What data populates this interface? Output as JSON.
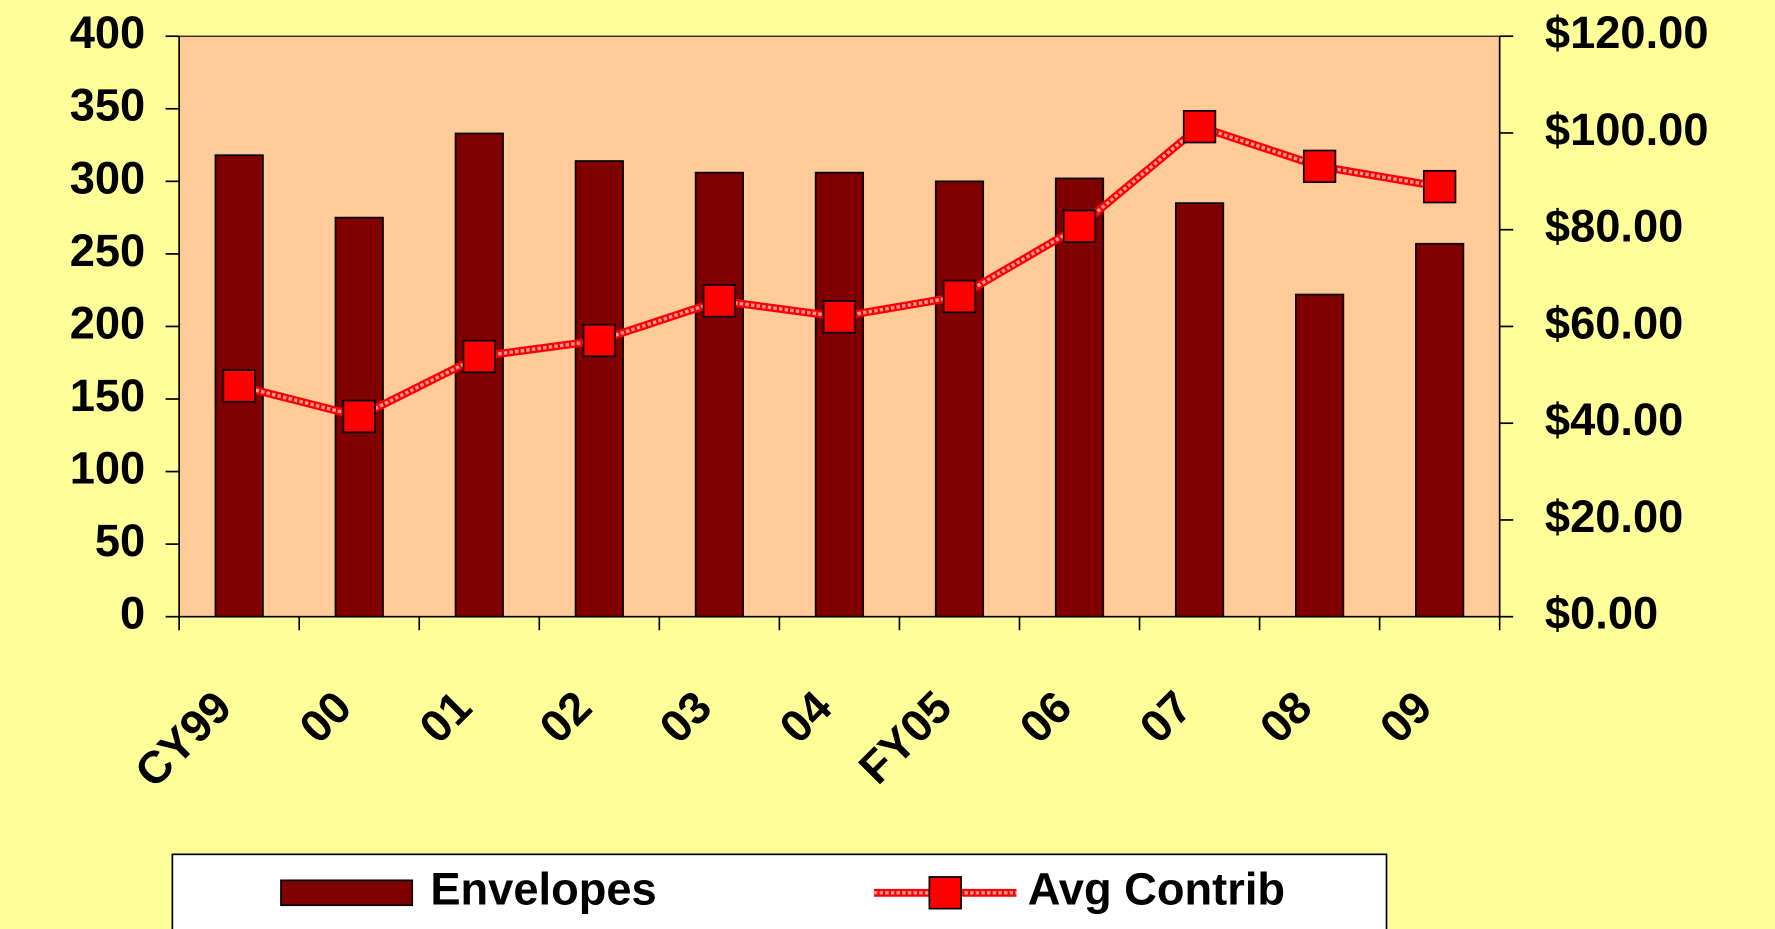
{
  "chart_data": {
    "type": "bar-line",
    "categories": [
      "CY99",
      "00",
      "01",
      "02",
      "03",
      "04",
      "FY05",
      "06",
      "07",
      "08",
      "09"
    ],
    "series": [
      {
        "name": "Envelopes",
        "type": "bar",
        "color": "#800000",
        "values": [
          318,
          275,
          333,
          314,
          306,
          306,
          300,
          302,
          285,
          222,
          257
        ]
      },
      {
        "name": "Avg Contrib",
        "type": "line",
        "axis": "y2",
        "color": "#ff0000",
        "values": [
          47.7,
          41.4,
          53.8,
          57.1,
          65.3,
          62.0,
          66.2,
          80.7,
          101.3,
          93.1,
          88.9
        ]
      }
    ],
    "ylim": [
      0,
      400
    ],
    "yticks": [
      0,
      50,
      100,
      150,
      200,
      250,
      300,
      350,
      400
    ],
    "y2lim": [
      0,
      120
    ],
    "y2ticks": [
      {
        "value": 0,
        "label": "$0.00"
      },
      {
        "value": 20,
        "label": "$20.00"
      },
      {
        "value": 40,
        "label": "$40.00"
      },
      {
        "value": 60,
        "label": "$60.00"
      },
      {
        "value": 80,
        "label": "$80.00"
      },
      {
        "value": 100,
        "label": "$100.00"
      },
      {
        "value": 120,
        "label": "$120.00"
      }
    ],
    "legend": "bottom"
  }
}
